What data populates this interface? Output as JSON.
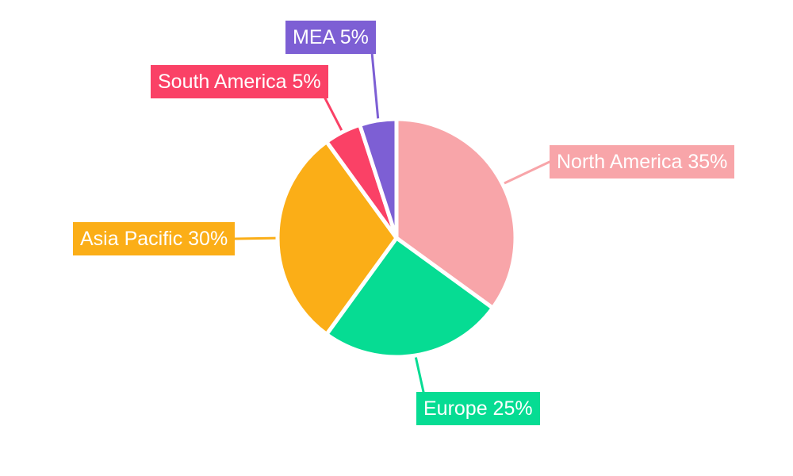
{
  "chart_data": {
    "type": "pie",
    "title": "",
    "legend_position": "none",
    "start_angle": "top",
    "direction": "clockwise",
    "background_color": "#ffffff",
    "label_text_color": "#ffffff",
    "slice_border_color": "#ffffff",
    "categories": [
      "North America",
      "Europe",
      "Asia Pacific",
      "South America",
      "MEA"
    ],
    "values": [
      35,
      25,
      30,
      5,
      5
    ],
    "segments": [
      {
        "label": "North America",
        "value": 35,
        "percent": "35%",
        "color": "#F8A5A9",
        "label_text": "North America 35%"
      },
      {
        "label": "Europe",
        "value": 25,
        "percent": "25%",
        "color": "#06DC93",
        "label_text": "Europe 25%"
      },
      {
        "label": "Asia Pacific",
        "value": 30,
        "percent": "30%",
        "color": "#FBAE17",
        "label_text": "Asia Pacific 30%"
      },
      {
        "label": "South America",
        "value": 5,
        "percent": "5%",
        "color": "#FA4166",
        "label_text": "South America 5%"
      },
      {
        "label": "MEA",
        "value": 5,
        "percent": "5%",
        "color": "#7D5FD4",
        "label_text": "MEA 5%"
      }
    ]
  }
}
